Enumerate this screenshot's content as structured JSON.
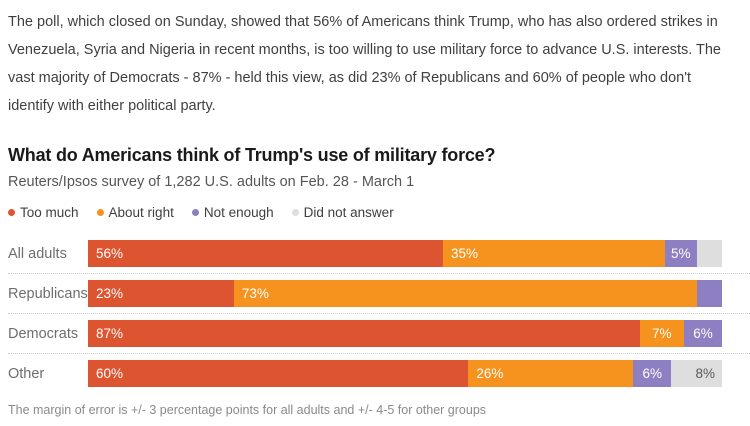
{
  "intro": "The poll, which closed on Sunday, showed that 56% of Americans think Trump, who has also ordered strikes in Venezuela, Syria and Nigeria in recent months, is too willing to use military force to advance U.S. interests. The vast majority of Democrats - 87% - held this view, as did 23% of Republicans and 60% of people who don't identify with either political party.",
  "title": "What do Americans think of Trump's use of military force?",
  "subtitle": "Reuters/Ipsos survey of 1,282 U.S. adults on Feb. 28 - March 1",
  "footnote": "The margin of error is +/- 3 percentage points for all adults and +/- 4-5 for other groups",
  "colors": {
    "too_much": "#dd5430",
    "about_right": "#f6931e",
    "not_enough": "#8d7fc1",
    "did_not_answer": "#dedede",
    "label_on_gray": "#595959"
  },
  "chart_data": {
    "type": "bar",
    "orientation": "horizontal",
    "stacked": true,
    "xlim": [
      0,
      100
    ],
    "grid": false,
    "legend_position": "top",
    "categories": [
      "All adults",
      "Republicans",
      "Democrats",
      "Other"
    ],
    "series": [
      {
        "name": "Too much",
        "color": "#dd5430",
        "values": [
          56,
          23,
          87,
          60
        ]
      },
      {
        "name": "About right",
        "color": "#f6931e",
        "values": [
          35,
          73,
          7,
          26
        ]
      },
      {
        "name": "Not enough",
        "color": "#8d7fc1",
        "values": [
          5,
          4,
          6,
          6
        ]
      },
      {
        "name": "Did not answer",
        "color": "#dedede",
        "values": [
          4,
          0,
          0,
          8
        ]
      }
    ],
    "label_format": "{v}%",
    "min_value_for_label": 5
  }
}
